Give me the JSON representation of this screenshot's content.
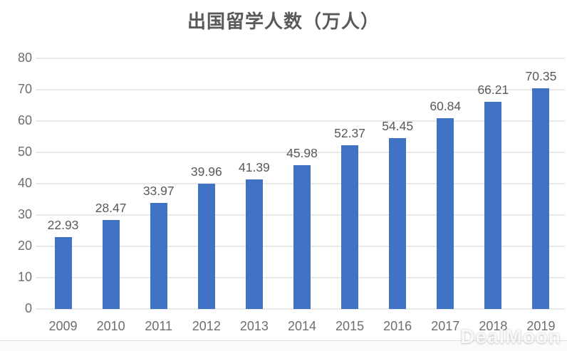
{
  "chart_data": {
    "type": "bar",
    "title": "出国留学人数（万人）",
    "categories": [
      "2009",
      "2010",
      "2011",
      "2012",
      "2013",
      "2014",
      "2015",
      "2016",
      "2017",
      "2018",
      "2019"
    ],
    "values": [
      22.93,
      28.47,
      33.97,
      39.96,
      41.39,
      45.98,
      52.37,
      54.45,
      60.84,
      66.21,
      70.35
    ],
    "data_labels": [
      "22.93",
      "28.47",
      "33.97",
      "39.96",
      "41.39",
      "45.98",
      "52.37",
      "54.45",
      "60.84",
      "66.21",
      "70.35"
    ],
    "xlabel": "",
    "ylabel": "",
    "ylim": [
      0,
      80
    ],
    "ytick_step": 10,
    "yticks": [
      "0",
      "10",
      "20",
      "30",
      "40",
      "50",
      "60",
      "70",
      "80"
    ],
    "grid": true,
    "legend": "none",
    "bar_color": "#4173C4",
    "label_color": "#595959",
    "axis_label_color": "#6e6e6e",
    "gridline_color": "#e9e9e9"
  },
  "watermark": {
    "text": "DealMoon"
  }
}
